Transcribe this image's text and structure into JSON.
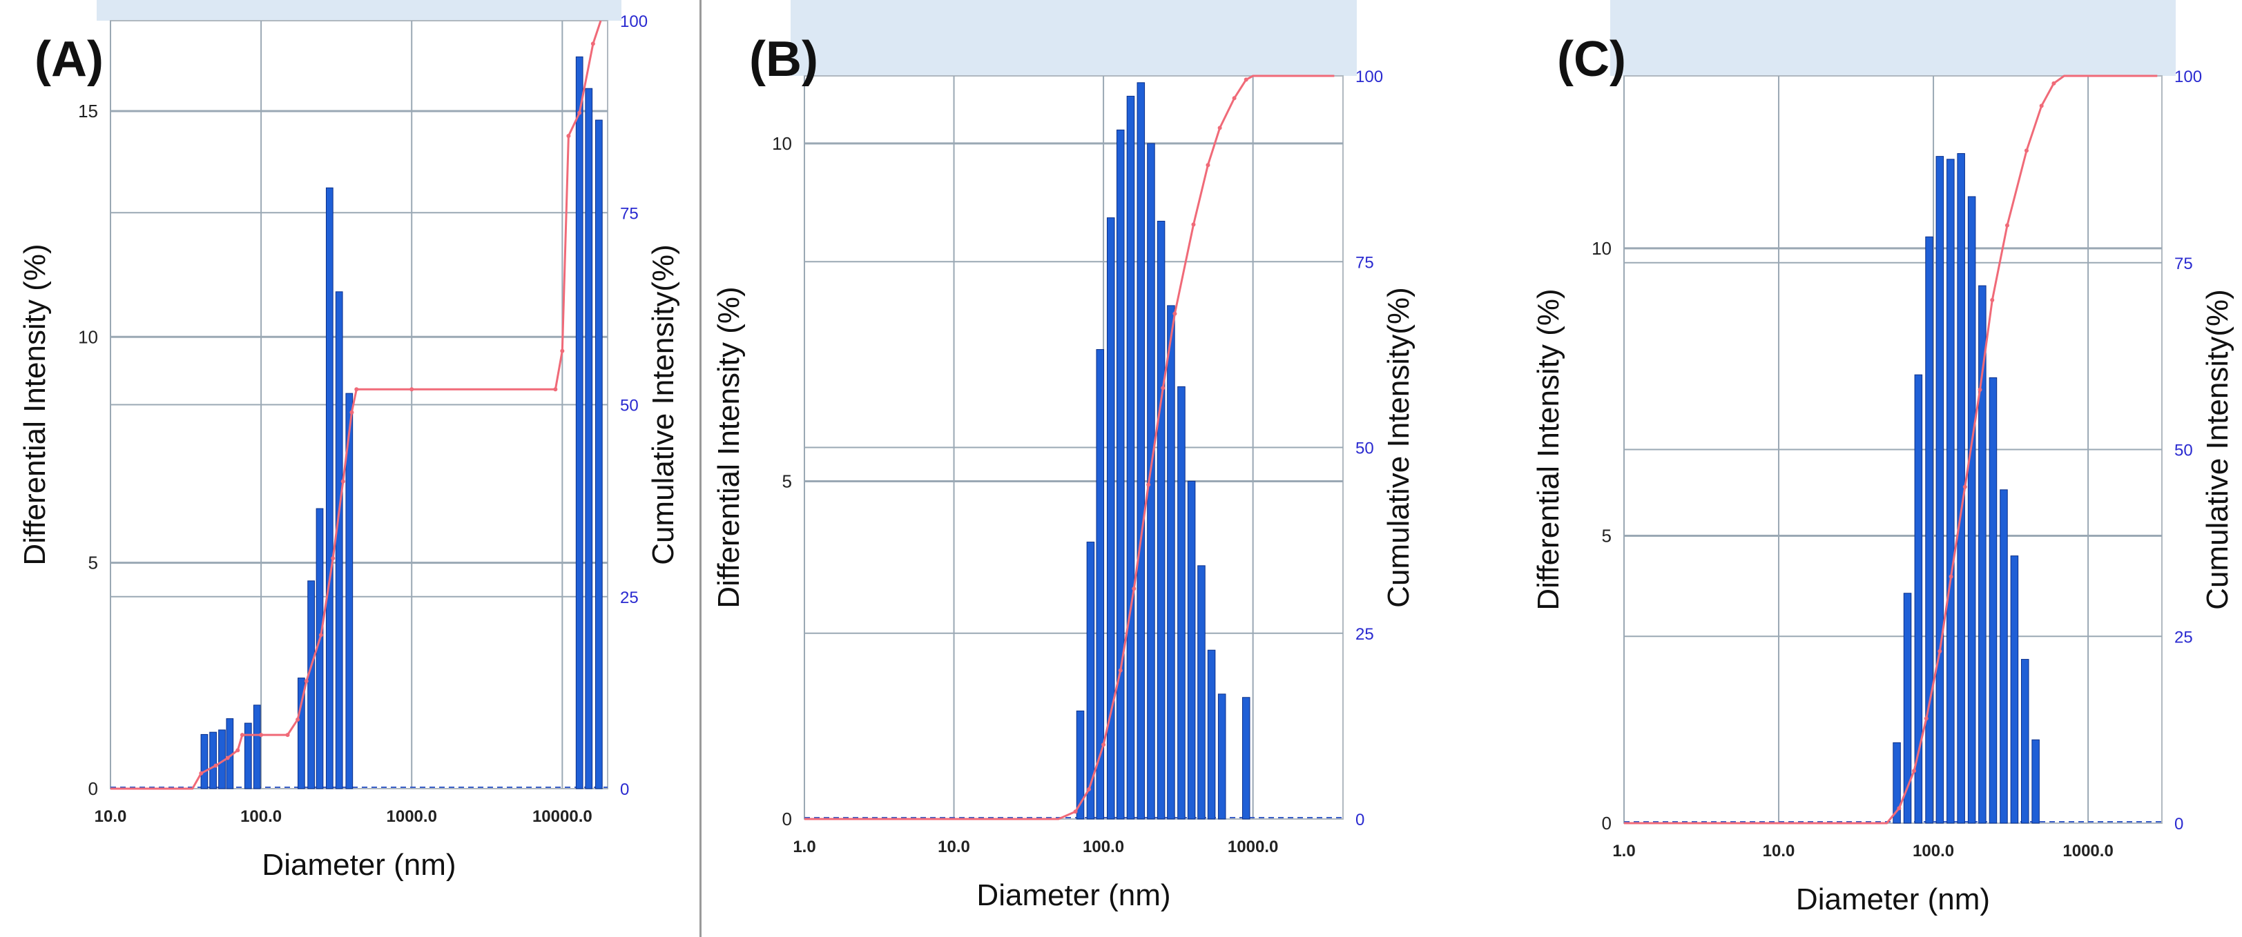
{
  "chart_data": [
    {
      "type": "bar",
      "panel_label": "(A)",
      "xlabel": "Diameter (nm)",
      "ylabel": "Differential Intensity (%)",
      "y2label": "Cumulative Intensity(%)",
      "xscale": "log",
      "xlim": [
        10,
        20000
      ],
      "ylim": [
        0,
        17
      ],
      "y2lim": [
        0,
        100
      ],
      "xticks": [
        10,
        100,
        1000,
        10000
      ],
      "xtick_labels": [
        "10.0",
        "100.0",
        "1000.0",
        "10000.0"
      ],
      "yticks": [
        0,
        5,
        10,
        15
      ],
      "y2ticks": [
        0,
        25,
        50,
        75,
        100
      ],
      "bars": [
        {
          "x": 42,
          "value": 1.2
        },
        {
          "x": 48,
          "value": 1.25
        },
        {
          "x": 55,
          "value": 1.3
        },
        {
          "x": 62,
          "value": 1.55
        },
        {
          "x": 82,
          "value": 1.45
        },
        {
          "x": 94,
          "value": 1.85
        },
        {
          "x": 185,
          "value": 2.45
        },
        {
          "x": 215,
          "value": 4.6
        },
        {
          "x": 245,
          "value": 6.2
        },
        {
          "x": 285,
          "value": 13.3
        },
        {
          "x": 330,
          "value": 11.0
        },
        {
          "x": 385,
          "value": 8.75
        },
        {
          "x": 13000,
          "value": 16.2
        },
        {
          "x": 15000,
          "value": 15.5
        },
        {
          "x": 17500,
          "value": 14.8
        }
      ],
      "cumulative": [
        [
          10,
          0
        ],
        [
          35,
          0
        ],
        [
          40,
          2
        ],
        [
          50,
          3
        ],
        [
          60,
          4
        ],
        [
          70,
          5
        ],
        [
          75,
          7
        ],
        [
          100,
          7
        ],
        [
          150,
          7
        ],
        [
          175,
          9
        ],
        [
          200,
          14
        ],
        [
          250,
          20
        ],
        [
          300,
          30
        ],
        [
          350,
          40
        ],
        [
          400,
          49
        ],
        [
          430,
          52
        ],
        [
          1000,
          52
        ],
        [
          9000,
          52
        ],
        [
          10000,
          57
        ],
        [
          11000,
          85
        ],
        [
          13000,
          88
        ],
        [
          16000,
          97
        ],
        [
          18000,
          100
        ]
      ],
      "grid": true
    },
    {
      "type": "bar",
      "panel_label": "(B)",
      "xlabel": "Diameter (nm)",
      "ylabel": "Differential Intensity (%)",
      "y2label": "Cumulative Intensity(%)",
      "xscale": "log",
      "xlim": [
        1,
        4000
      ],
      "ylim": [
        0,
        11
      ],
      "y2lim": [
        0,
        100
      ],
      "xticks": [
        1,
        10,
        100,
        1000
      ],
      "xtick_labels": [
        "1.0",
        "10.0",
        "100.0",
        "1000.0"
      ],
      "yticks": [
        0,
        5,
        10
      ],
      "y2ticks": [
        0,
        25,
        50,
        75,
        100
      ],
      "bars": [
        {
          "x": 70,
          "value": 1.6
        },
        {
          "x": 82,
          "value": 4.1
        },
        {
          "x": 95,
          "value": 6.95
        },
        {
          "x": 112,
          "value": 8.9
        },
        {
          "x": 130,
          "value": 10.2
        },
        {
          "x": 152,
          "value": 10.7
        },
        {
          "x": 178,
          "value": 10.9
        },
        {
          "x": 208,
          "value": 10.0
        },
        {
          "x": 243,
          "value": 8.85
        },
        {
          "x": 283,
          "value": 7.6
        },
        {
          "x": 332,
          "value": 6.4
        },
        {
          "x": 388,
          "value": 5.0
        },
        {
          "x": 452,
          "value": 3.75
        },
        {
          "x": 528,
          "value": 2.5
        },
        {
          "x": 620,
          "value": 1.85
        },
        {
          "x": 900,
          "value": 1.8
        }
      ],
      "cumulative": [
        [
          1,
          0
        ],
        [
          50,
          0
        ],
        [
          65,
          1
        ],
        [
          80,
          4
        ],
        [
          100,
          10
        ],
        [
          130,
          20
        ],
        [
          160,
          31
        ],
        [
          200,
          45
        ],
        [
          250,
          58
        ],
        [
          300,
          68
        ],
        [
          400,
          80
        ],
        [
          500,
          88
        ],
        [
          600,
          93
        ],
        [
          750,
          97
        ],
        [
          900,
          99.5
        ],
        [
          1000,
          100
        ],
        [
          3500,
          100
        ]
      ],
      "grid": true
    },
    {
      "type": "bar",
      "panel_label": "(C)",
      "xlabel": "Diameter (nm)",
      "ylabel": "Differential Intensity (%)",
      "y2label": "Cumulative Intensity(%)",
      "xscale": "log",
      "xlim": [
        1,
        3000
      ],
      "ylim": [
        0,
        13
      ],
      "y2lim": [
        0,
        100
      ],
      "xticks": [
        1,
        10,
        100,
        1000
      ],
      "xtick_labels": [
        "1.0",
        "10.0",
        "100.0",
        "1000.0"
      ],
      "yticks": [
        0,
        5,
        10
      ],
      "y2ticks": [
        0,
        25,
        50,
        75,
        100
      ],
      "bars": [
        {
          "x": 58,
          "value": 1.4
        },
        {
          "x": 68,
          "value": 4.0
        },
        {
          "x": 80,
          "value": 7.8
        },
        {
          "x": 94,
          "value": 10.2
        },
        {
          "x": 110,
          "value": 11.6
        },
        {
          "x": 129,
          "value": 11.55
        },
        {
          "x": 151,
          "value": 11.65
        },
        {
          "x": 177,
          "value": 10.9
        },
        {
          "x": 207,
          "value": 9.35
        },
        {
          "x": 243,
          "value": 7.75
        },
        {
          "x": 285,
          "value": 5.8
        },
        {
          "x": 334,
          "value": 4.65
        },
        {
          "x": 391,
          "value": 2.85
        },
        {
          "x": 458,
          "value": 1.45
        }
      ],
      "cumulative": [
        [
          1,
          0
        ],
        [
          50,
          0
        ],
        [
          60,
          2
        ],
        [
          75,
          7
        ],
        [
          90,
          14
        ],
        [
          110,
          23
        ],
        [
          130,
          33
        ],
        [
          160,
          45
        ],
        [
          200,
          58
        ],
        [
          240,
          70
        ],
        [
          300,
          80
        ],
        [
          400,
          90
        ],
        [
          500,
          96
        ],
        [
          600,
          99
        ],
        [
          700,
          100
        ],
        [
          2800,
          100
        ]
      ],
      "grid": true
    }
  ],
  "colors": {
    "bar_fill": "#1f5fd6",
    "bar_stroke": "#0a2f8a",
    "cumulative_line": "#f06a78",
    "right_tick_text": "#2a2ad0",
    "grid": "#9aa8b4",
    "plot_frame": "#b0b8c0",
    "header_band": "#dce8f4",
    "baseline_dash": "#3a5fc8"
  }
}
